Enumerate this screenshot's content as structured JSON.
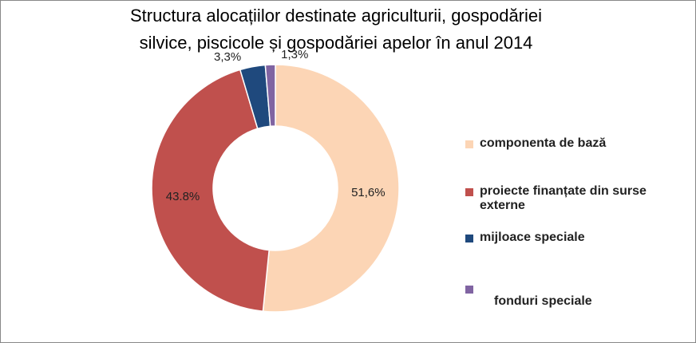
{
  "chart_data": {
    "type": "donut",
    "title": [
      "Structura alocațiilor destinate agriculturii, gospodăriei",
      "silvice, piscicole și gospodăriei apelor  în anul 2014"
    ],
    "categories": [
      "componenta de bază",
      "proiecte finanțate din surse externe",
      "mijloace speciale",
      "fonduri speciale"
    ],
    "values": [
      51.6,
      43.8,
      3.3,
      1.3
    ],
    "value_labels": [
      "51,6%",
      "43.8%",
      "3,3%",
      "1,3%"
    ],
    "colors": [
      "#fcd5b5",
      "#c0504d",
      "#1f497d",
      "#8064a2"
    ],
    "legend": "right"
  }
}
